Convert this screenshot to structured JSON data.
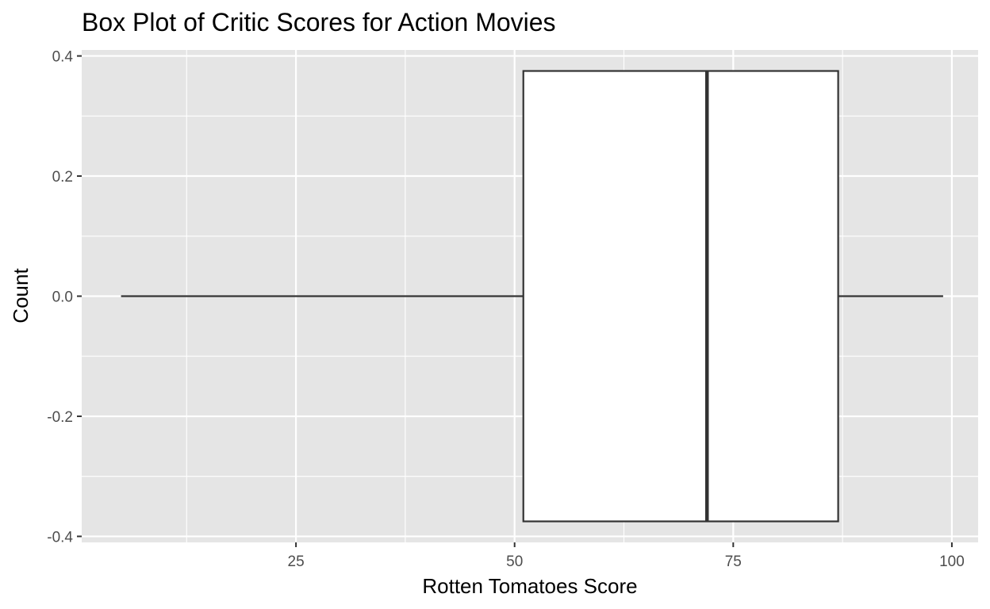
{
  "chart_data": {
    "type": "box",
    "title": "Box Plot of Critic Scores for Action Movies",
    "xlabel": "Rotten Tomatoes Score",
    "ylabel": "Count",
    "orientation": "horizontal",
    "xlim": [
      0.5,
      103
    ],
    "ylim": [
      -0.41,
      0.41
    ],
    "x_ticks": [
      25,
      50,
      75,
      100
    ],
    "x_tick_labels": [
      "25",
      "50",
      "75",
      "100"
    ],
    "y_ticks": [
      -0.4,
      -0.2,
      0.0,
      0.2,
      0.4
    ],
    "y_tick_labels": [
      "-0.4",
      "-0.2",
      "0.0",
      "0.2",
      "0.4"
    ],
    "box": {
      "whisker_low": 5,
      "q1": 51,
      "median": 72,
      "q3": 87,
      "whisker_high": 99,
      "box_y_min": -0.375,
      "box_y_max": 0.375,
      "center_y": 0.0
    },
    "grid": true,
    "legend": "none",
    "colors": {
      "panel_background": "#e5e5e5",
      "grid": "#ffffff",
      "box_fill": "#ffffff",
      "box_stroke": "#333333",
      "tick_text": "#4d4d4d",
      "tick_mark": "#333333"
    }
  }
}
